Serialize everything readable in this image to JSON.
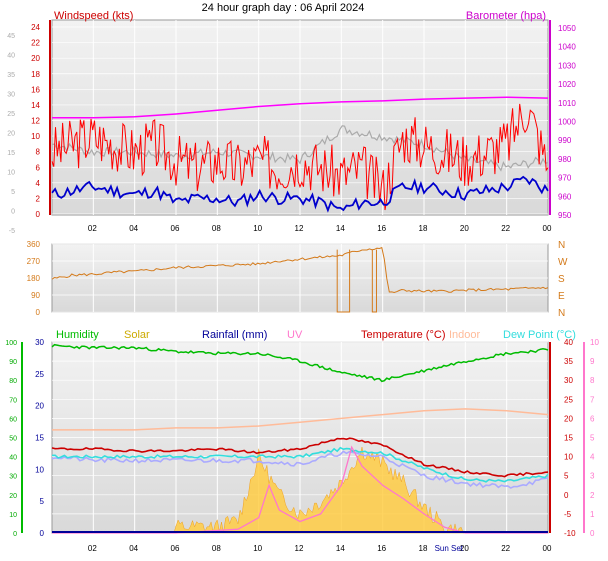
{
  "title": "24 hour graph day : 06 April 2024",
  "x_tick_labels": [
    "02",
    "04",
    "06",
    "08",
    "10",
    "12",
    "14",
    "16",
    "18",
    "20",
    "22",
    "00"
  ],
  "sun_marker_label": "Sun Set",
  "colors": {
    "wind": "#ff0000",
    "wind_avg": "#0000cc",
    "gust_avg": "#aaaaaa",
    "baro": "#ff00ff",
    "winddir": "#d47a1a",
    "humidity": "#00bb00",
    "solar": "#ffcc44",
    "rain": "#000099",
    "uv": "#ff77cc",
    "temp": "#cc0000",
    "indoor": "#ffbb99",
    "dew": "#33dddd",
    "apparent": "#aaaaff"
  },
  "panel1": {
    "left_title": "Windspeed (kts)",
    "right_title": "Barometer (hpa)",
    "left_ticks": [
      "24",
      "22",
      "20",
      "18",
      "16",
      "14",
      "12",
      "10",
      "8",
      "6",
      "4",
      "2",
      "0"
    ],
    "grey_left_ticks": [
      "45",
      "40",
      "35",
      "30",
      "25",
      "20",
      "15",
      "10",
      "5",
      "0",
      "-5"
    ],
    "right_ticks": [
      "1050",
      "1040",
      "1030",
      "1020",
      "1010",
      "1000",
      "990",
      "980",
      "970",
      "960",
      "950"
    ]
  },
  "panel2": {
    "left_ticks": [
      "360",
      "270",
      "180",
      "90",
      "0"
    ],
    "right_ticks": [
      "N",
      "W",
      "S",
      "E",
      "N"
    ]
  },
  "panel3": {
    "legend": [
      "Humidity",
      "Solar",
      "Rainfall (mm)",
      "UV",
      "Temperature (°C)",
      "Indoor",
      "Dew Point (°C)"
    ],
    "humidity_ticks": [
      "100",
      "90",
      "80",
      "70",
      "60",
      "50",
      "40",
      "30",
      "20",
      "10",
      "0"
    ],
    "solar_ticks": [
      "30",
      "25",
      "20",
      "15",
      "10",
      "5",
      "0"
    ],
    "temp_ticks": [
      "40",
      "35",
      "30",
      "25",
      "20",
      "15",
      "10",
      "5",
      "0",
      "-5",
      "-10"
    ],
    "uv_ticks": [
      "10",
      "9",
      "8",
      "7",
      "6",
      "5",
      "4",
      "3",
      "2",
      "1",
      "0"
    ]
  },
  "chart_data": [
    {
      "type": "line",
      "title": "24 hour graph day : 06 April 2024",
      "x_unit": "hour",
      "ylabel": "Windspeed (kts)",
      "y2label": "Barometer (hpa)",
      "ylim": [
        0,
        24
      ],
      "y2lim": [
        950,
        1050
      ],
      "series": [
        {
          "name": "Windspeed (kts)",
          "x": [
            0,
            1,
            2,
            3,
            4,
            5,
            6,
            7,
            8,
            9,
            10,
            11,
            12,
            13,
            14,
            15,
            16,
            17,
            18,
            19,
            20,
            21,
            22,
            23,
            24
          ],
          "values": [
            8,
            9,
            10,
            9,
            8,
            9,
            7,
            6,
            7,
            6,
            7,
            6,
            7,
            6,
            5,
            6,
            3,
            10,
            9,
            8,
            7,
            8,
            9,
            14,
            6
          ]
        },
        {
          "x": [
            0,
            1,
            2,
            3,
            4,
            5,
            6,
            7,
            8,
            9,
            10,
            11,
            12,
            13,
            14,
            15,
            16,
            17,
            18,
            19,
            20,
            21,
            22,
            23,
            24
          ],
          "values": [
            2.5,
            3,
            3.5,
            3,
            2.5,
            3,
            1.5,
            2,
            2,
            1.5,
            2.5,
            2,
            2,
            1.5,
            0.5,
            1.5,
            1.5,
            3.5,
            3.5,
            3,
            2.5,
            3,
            3.5,
            4.5,
            3
          ]
        },
        {
          "x": [
            0,
            2,
            4,
            6,
            8,
            10,
            12,
            14,
            16,
            18,
            20,
            22,
            24
          ],
          "values": [
            9,
            8,
            8,
            7.5,
            8,
            7.5,
            7,
            11,
            10,
            9,
            7,
            6,
            7
          ]
        },
        {
          "name": "Barometer (hpa)",
          "axis": "right",
          "x": [
            0,
            2,
            4,
            6,
            8,
            10,
            12,
            14,
            16,
            18,
            20,
            22,
            24
          ],
          "values": [
            1002,
            1002,
            1002.5,
            1004,
            1006,
            1008,
            1009.5,
            1010.5,
            1011,
            1012,
            1012.5,
            1013,
            1012.5
          ]
        }
      ]
    },
    {
      "type": "line",
      "ylim": [
        0,
        360
      ],
      "series": [
        {
          "x": [
            0,
            1,
            2,
            3,
            4,
            5,
            6,
            7,
            8,
            9,
            10,
            11,
            12,
            13,
            14,
            15,
            16,
            16.3,
            17,
            18,
            19,
            20,
            21,
            22,
            23,
            24
          ],
          "values": [
            175,
            195,
            200,
            210,
            215,
            225,
            235,
            240,
            245,
            250,
            255,
            270,
            280,
            290,
            300,
            330,
            340,
            100,
            115,
            110,
            110,
            115,
            118,
            120,
            125,
            130
          ]
        }
      ]
    },
    {
      "type": "line",
      "series": [
        {
          "name": "Humidity",
          "axis": "humidity",
          "x": [
            0,
            2,
            4,
            6,
            8,
            10,
            12,
            14,
            16,
            18,
            20,
            22,
            24
          ],
          "values": [
            98,
            97,
            97,
            95,
            94,
            94,
            90,
            84,
            80,
            85,
            90,
            94,
            96
          ]
        },
        {
          "name": "Temperature (°C)",
          "axis": "temp",
          "x": [
            0,
            2,
            4,
            6,
            8,
            10,
            12,
            14,
            16,
            18,
            20,
            22,
            24
          ],
          "values": [
            12,
            12,
            11.5,
            11.5,
            12,
            11,
            12,
            15,
            13,
            8,
            6,
            5,
            6
          ]
        },
        {
          "name": "Dew Point (°C)",
          "axis": "temp",
          "x": [
            0,
            2,
            4,
            6,
            8,
            10,
            12,
            14,
            16,
            18,
            20,
            22,
            24
          ],
          "values": [
            10,
            10,
            10,
            10,
            10,
            10,
            10,
            12,
            11,
            7,
            4,
            3.5,
            5
          ]
        },
        {
          "name": "Indoor",
          "axis": "temp",
          "x": [
            0,
            2,
            4,
            6,
            8,
            10,
            12,
            14,
            16,
            18,
            20,
            22,
            24
          ],
          "values": [
            17,
            17,
            17,
            17.5,
            17.5,
            18,
            19,
            20,
            21,
            22,
            22.5,
            22,
            21
          ]
        },
        {
          "axis": "temp",
          "x": [
            0,
            2,
            4,
            6,
            8,
            10,
            12,
            14,
            16,
            18,
            20,
            22,
            24
          ],
          "values": [
            10,
            9,
            9,
            9,
            9,
            9,
            8,
            11,
            10,
            5,
            3,
            2,
            4
          ]
        },
        {
          "name": "Solar",
          "axis": "solar",
          "x": [
            0,
            5.9,
            6,
            8,
            9,
            10,
            11,
            12,
            13,
            14,
            15,
            16,
            17,
            18,
            19,
            20,
            24
          ],
          "values": [
            0,
            0,
            1,
            1,
            2,
            12,
            6,
            3,
            5,
            8,
            13,
            11,
            8,
            4,
            1,
            0,
            0
          ]
        },
        {
          "name": "UV",
          "axis": "uv",
          "x": [
            0,
            6,
            9,
            10,
            10.5,
            11,
            12,
            13,
            14,
            14.5,
            15,
            16,
            17,
            18,
            19,
            20,
            24
          ],
          "values": [
            0,
            0,
            0.2,
            0.8,
            2.5,
            1.2,
            0.6,
            1.0,
            2.5,
            4.5,
            3.5,
            2.5,
            1.8,
            1.0,
            0.3,
            0,
            0
          ]
        },
        {
          "name": "Rainfall (mm)",
          "axis": "solar",
          "x": [
            0,
            24
          ],
          "values": [
            0,
            0
          ]
        }
      ]
    }
  ]
}
